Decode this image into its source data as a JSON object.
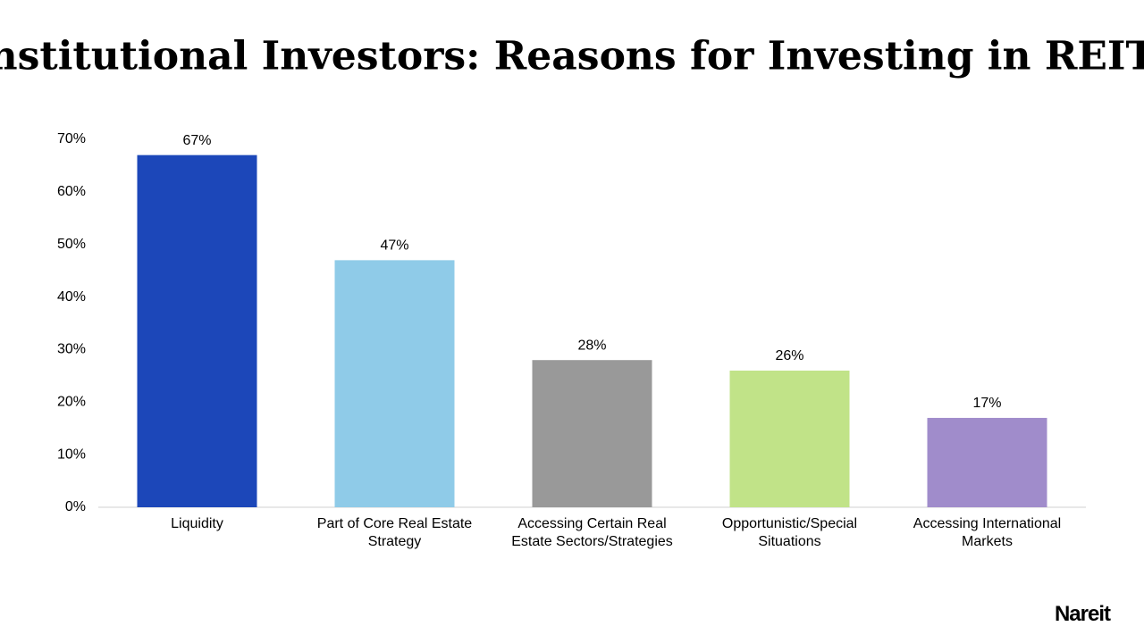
{
  "chart_data": {
    "type": "bar",
    "title": "Institutional Investors: Reasons for Investing in REITs",
    "categories": [
      "Liquidity",
      "Part of Core Real Estate Strategy",
      "Accessing Certain Real Estate Sectors/Strategies",
      "Opportunistic/Special Situations",
      "Accessing International Markets"
    ],
    "values": [
      67,
      47,
      28,
      26,
      17
    ],
    "value_labels": [
      "67%",
      "47%",
      "28%",
      "26%",
      "17%"
    ],
    "colors": [
      "#1c47b9",
      "#8fcbe8",
      "#999999",
      "#c1e388",
      "#a08ccb"
    ],
    "ylim": [
      0,
      70
    ],
    "yticks": [
      {
        "value": 0,
        "label": "0%"
      },
      {
        "value": 10,
        "label": "10%"
      },
      {
        "value": 20,
        "label": "20%"
      },
      {
        "value": 30,
        "label": "30%"
      },
      {
        "value": 40,
        "label": "40%"
      },
      {
        "value": 50,
        "label": "50%"
      },
      {
        "value": 60,
        "label": "60%"
      },
      {
        "value": 70,
        "label": "70%"
      }
    ],
    "grid": false
  },
  "logo": "Nareit"
}
